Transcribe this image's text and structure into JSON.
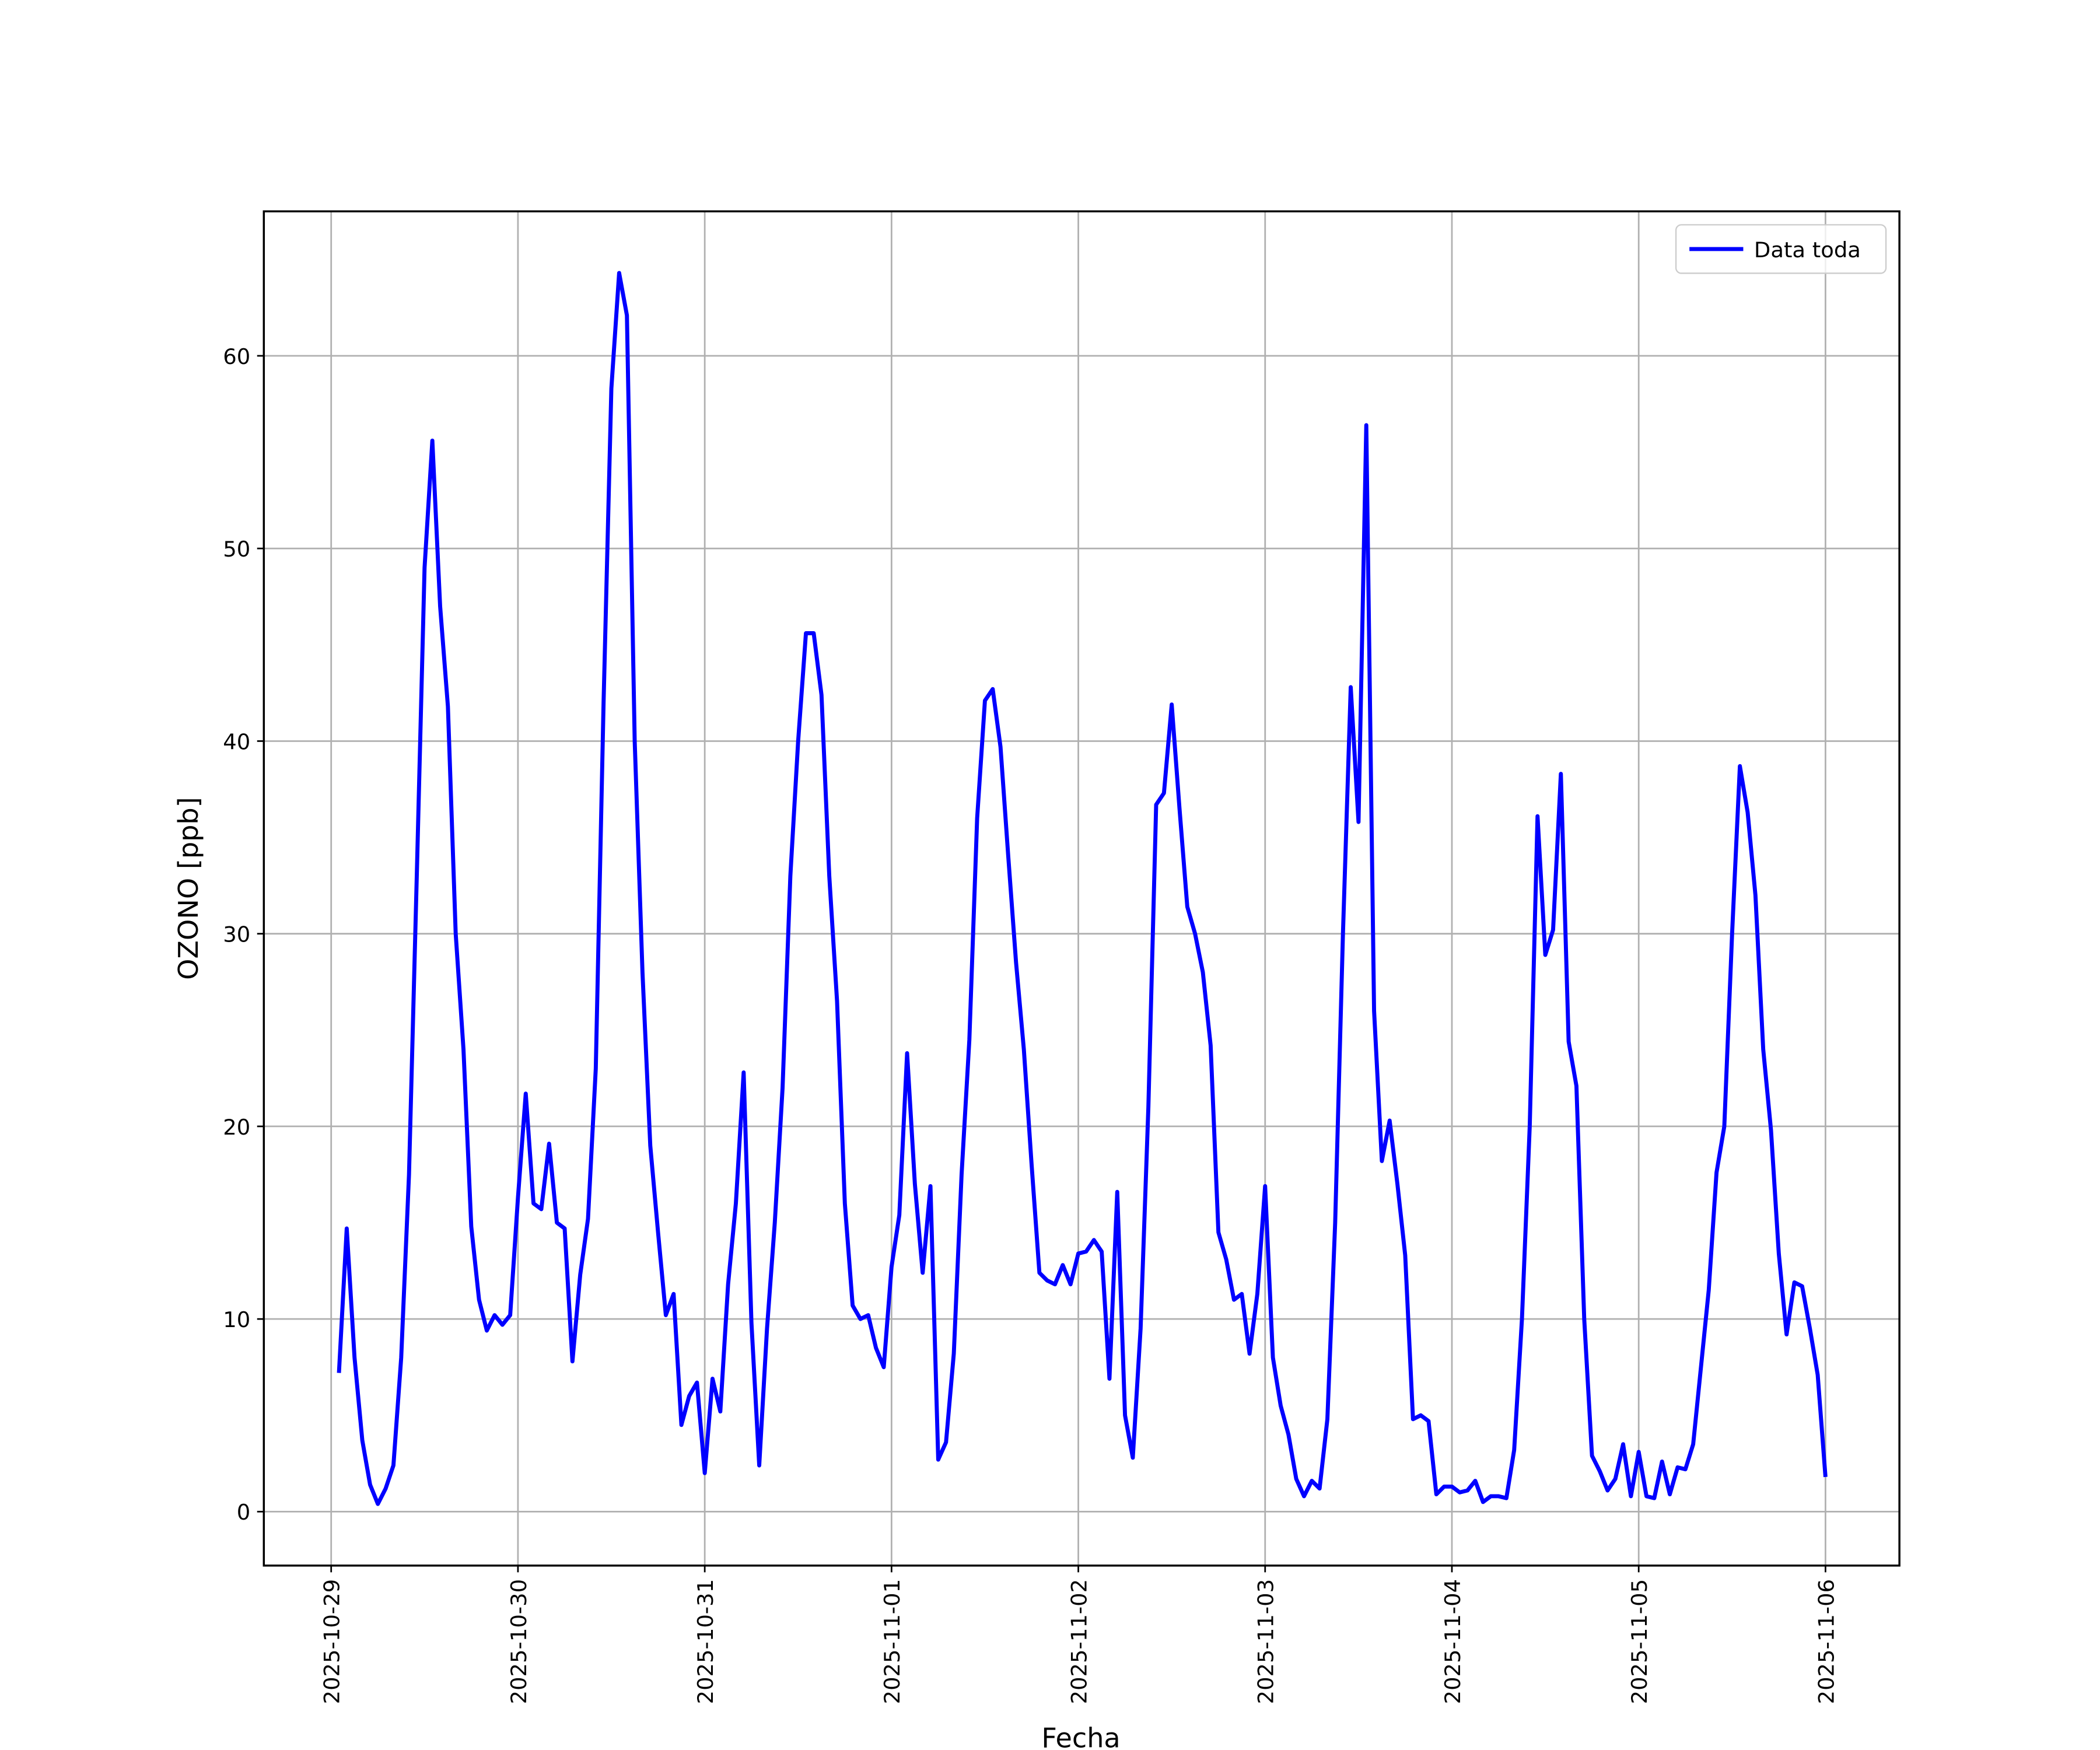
{
  "chart_data": {
    "type": "line",
    "xlabel": "Fecha",
    "ylabel": "OZONO [ppb]",
    "x": [
      "2025-10-29 01:00",
      "2025-10-29 02:00",
      "2025-10-29 03:00",
      "2025-10-29 04:00",
      "2025-10-29 05:00",
      "2025-10-29 06:00",
      "2025-10-29 07:00",
      "2025-10-29 08:00",
      "2025-10-29 09:00",
      "2025-10-29 10:00",
      "2025-10-29 11:00",
      "2025-10-29 12:00",
      "2025-10-29 13:00",
      "2025-10-29 14:00",
      "2025-10-29 15:00",
      "2025-10-29 16:00",
      "2025-10-29 17:00",
      "2025-10-29 18:00",
      "2025-10-29 19:00",
      "2025-10-29 20:00",
      "2025-10-29 21:00",
      "2025-10-29 22:00",
      "2025-10-29 23:00",
      "2025-10-30 00:00",
      "2025-10-30 01:00",
      "2025-10-30 02:00",
      "2025-10-30 03:00",
      "2025-10-30 04:00",
      "2025-10-30 05:00",
      "2025-10-30 06:00",
      "2025-10-30 07:00",
      "2025-10-30 08:00",
      "2025-10-30 09:00",
      "2025-10-30 10:00",
      "2025-10-30 11:00",
      "2025-10-30 12:00",
      "2025-10-30 13:00",
      "2025-10-30 14:00",
      "2025-10-30 15:00",
      "2025-10-30 16:00",
      "2025-10-30 17:00",
      "2025-10-30 18:00",
      "2025-10-30 19:00",
      "2025-10-30 20:00",
      "2025-10-30 21:00",
      "2025-10-30 22:00",
      "2025-10-30 23:00",
      "2025-10-31 00:00",
      "2025-10-31 01:00",
      "2025-10-31 02:00",
      "2025-10-31 03:00",
      "2025-10-31 04:00",
      "2025-10-31 05:00",
      "2025-10-31 06:00",
      "2025-10-31 07:00",
      "2025-10-31 08:00",
      "2025-10-31 09:00",
      "2025-10-31 10:00",
      "2025-10-31 11:00",
      "2025-10-31 12:00",
      "2025-10-31 13:00",
      "2025-10-31 14:00",
      "2025-10-31 15:00",
      "2025-10-31 16:00",
      "2025-10-31 17:00",
      "2025-10-31 18:00",
      "2025-10-31 19:00",
      "2025-10-31 20:00",
      "2025-10-31 21:00",
      "2025-10-31 22:00",
      "2025-10-31 23:00",
      "2025-11-01 00:00",
      "2025-11-01 01:00",
      "2025-11-01 02:00",
      "2025-11-01 03:00",
      "2025-11-01 04:00",
      "2025-11-01 05:00",
      "2025-11-01 06:00",
      "2025-11-01 07:00",
      "2025-11-01 08:00",
      "2025-11-01 09:00",
      "2025-11-01 10:00",
      "2025-11-01 11:00",
      "2025-11-01 12:00",
      "2025-11-01 13:00",
      "2025-11-01 14:00",
      "2025-11-01 15:00",
      "2025-11-01 16:00",
      "2025-11-01 17:00",
      "2025-11-01 18:00",
      "2025-11-01 19:00",
      "2025-11-01 20:00",
      "2025-11-01 21:00",
      "2025-11-01 22:00",
      "2025-11-01 23:00",
      "2025-11-02 00:00",
      "2025-11-02 01:00",
      "2025-11-02 02:00",
      "2025-11-02 03:00",
      "2025-11-02 04:00",
      "2025-11-02 05:00",
      "2025-11-02 06:00",
      "2025-11-02 07:00",
      "2025-11-02 08:00",
      "2025-11-02 09:00",
      "2025-11-02 10:00",
      "2025-11-02 11:00",
      "2025-11-02 12:00",
      "2025-11-02 13:00",
      "2025-11-02 14:00",
      "2025-11-02 15:00",
      "2025-11-02 16:00",
      "2025-11-02 17:00",
      "2025-11-02 18:00",
      "2025-11-02 19:00",
      "2025-11-02 20:00",
      "2025-11-02 21:00",
      "2025-11-02 22:00",
      "2025-11-02 23:00",
      "2025-11-03 00:00",
      "2025-11-03 01:00",
      "2025-11-03 02:00",
      "2025-11-03 03:00",
      "2025-11-03 04:00",
      "2025-11-03 05:00",
      "2025-11-03 06:00",
      "2025-11-03 07:00",
      "2025-11-03 08:00",
      "2025-11-03 09:00",
      "2025-11-03 10:00",
      "2025-11-03 11:00",
      "2025-11-03 12:00",
      "2025-11-03 13:00",
      "2025-11-03 14:00",
      "2025-11-03 15:00",
      "2025-11-03 16:00",
      "2025-11-03 17:00",
      "2025-11-03 18:00",
      "2025-11-03 19:00",
      "2025-11-03 20:00",
      "2025-11-03 21:00",
      "2025-11-03 22:00",
      "2025-11-03 23:00",
      "2025-11-04 00:00",
      "2025-11-04 01:00",
      "2025-11-04 02:00",
      "2025-11-04 03:00",
      "2025-11-04 04:00",
      "2025-11-04 05:00",
      "2025-11-04 06:00",
      "2025-11-04 07:00",
      "2025-11-04 08:00",
      "2025-11-04 09:00",
      "2025-11-04 10:00",
      "2025-11-04 11:00",
      "2025-11-04 12:00",
      "2025-11-04 13:00",
      "2025-11-04 14:00",
      "2025-11-04 15:00",
      "2025-11-04 16:00",
      "2025-11-04 17:00",
      "2025-11-04 18:00",
      "2025-11-04 19:00",
      "2025-11-04 20:00",
      "2025-11-04 21:00",
      "2025-11-04 22:00",
      "2025-11-04 23:00",
      "2025-11-05 00:00",
      "2025-11-05 01:00",
      "2025-11-05 02:00",
      "2025-11-05 03:00",
      "2025-11-05 04:00",
      "2025-11-05 05:00",
      "2025-11-05 06:00",
      "2025-11-05 07:00",
      "2025-11-05 08:00",
      "2025-11-05 09:00",
      "2025-11-05 10:00",
      "2025-11-05 11:00",
      "2025-11-05 12:00",
      "2025-11-05 13:00",
      "2025-11-05 14:00",
      "2025-11-05 15:00",
      "2025-11-05 16:00",
      "2025-11-05 17:00",
      "2025-11-05 18:00",
      "2025-11-05 19:00",
      "2025-11-05 20:00",
      "2025-11-05 21:00",
      "2025-11-05 22:00",
      "2025-11-05 23:00",
      "2025-11-06 00:00"
    ],
    "series": [
      {
        "name": "Data toda",
        "color": "#0000ff",
        "values": [
          7.2,
          14.7,
          8,
          3.7,
          1.4,
          0.4,
          1.2,
          2.4,
          8,
          17.5,
          33,
          49,
          55.6,
          47,
          41.8,
          30,
          24,
          14.8,
          11,
          9.4,
          10.2,
          9.7,
          10.2,
          16.3,
          21.7,
          16,
          15.7,
          19.1,
          15,
          14.7,
          7.8,
          12.3,
          15.2,
          23,
          42,
          58.3,
          64.3,
          62.1,
          40,
          28,
          19,
          14.5,
          10.2,
          11.3,
          4.5,
          6,
          6.7,
          2,
          6.9,
          5.2,
          11.8,
          16,
          22.8,
          9.8,
          2.4,
          9.5,
          15,
          22,
          33,
          40,
          45.6,
          45.6,
          42.4,
          33,
          26.5,
          16,
          10.7,
          10,
          10.2,
          8.5,
          7.5,
          12.7,
          15.4,
          23.8,
          17,
          12.4,
          16.9,
          2.7,
          3.6,
          8.2,
          17.5,
          24.5,
          36,
          42.1,
          42.7,
          39.7,
          34,
          28.5,
          24,
          18,
          12.4,
          12,
          11.8,
          12.8,
          11.8,
          13.4,
          13.5,
          14.1,
          13.5,
          6.9,
          16.6,
          5,
          2.8,
          9.5,
          21,
          36.7,
          37.3,
          41.9,
          36.5,
          31.4,
          30,
          28,
          24.2,
          14.5,
          13.1,
          11,
          11.3,
          8.2,
          11.3,
          16.9,
          8,
          5.5,
          4,
          1.7,
          0.8,
          1.6,
          1.2,
          4.8,
          15,
          30,
          42.8,
          35.8,
          56.4,
          26,
          18.2,
          20.3,
          17,
          13.3,
          4.8,
          5,
          4.7,
          0.9,
          1.3,
          1.3,
          1,
          1.1,
          1.6,
          0.5,
          0.8,
          0.8,
          0.7,
          3.2,
          10,
          20,
          36.1,
          28.9,
          30.2,
          38.3,
          24.4,
          22.1,
          10,
          2.9,
          2.1,
          1.1,
          1.7,
          3.5,
          0.8,
          3.1,
          0.8,
          0.7,
          2.6,
          0.9,
          2.3,
          2.2,
          3.5,
          7.5,
          11.5,
          17.6,
          20,
          30,
          38.7,
          36.3,
          32,
          24,
          19.8,
          13.4,
          9.2,
          11.9,
          11.7,
          9.5,
          7.1,
          1.8
        ]
      }
    ],
    "xlim": [
      "2025-10-28 15:21",
      "2025-11-06 09:30"
    ],
    "xticks": [
      "2025-10-29",
      "2025-10-30",
      "2025-10-31",
      "2025-11-01",
      "2025-11-02",
      "2025-11-03",
      "2025-11-04",
      "2025-11-05",
      "2025-11-06"
    ],
    "ylim": [
      -2.8,
      67.5
    ],
    "yticks": [
      0,
      10,
      20,
      30,
      40,
      50,
      60
    ],
    "grid": true,
    "legend": "upper right"
  }
}
